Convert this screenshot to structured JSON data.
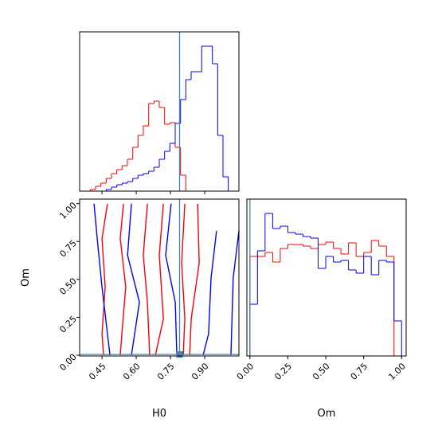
{
  "chart_data": [
    {
      "type": "histogram",
      "bins": [
        0.352,
        0.3753,
        0.3985,
        0.4218,
        0.4451,
        0.4683,
        0.4916,
        0.5149,
        0.5381,
        0.5614,
        0.5847,
        0.6079,
        0.6312,
        0.6545,
        0.6777,
        0.701,
        0.7243,
        0.7475,
        0.7708,
        0.7941,
        0.8173,
        0.8406,
        0.8639,
        0.8871,
        0.9104,
        0.9337,
        0.9569,
        0.9802,
        1.0035,
        1.0267,
        1.05
      ],
      "series": [
        {
          "color": "#ff0000",
          "values": [
            0,
            0,
            2,
            6,
            10,
            16,
            22,
            27,
            32,
            40,
            55,
            70,
            82,
            110,
            113,
            105,
            84,
            86,
            55,
            20,
            0,
            0,
            0,
            0,
            0,
            0,
            0,
            0,
            0,
            0
          ]
        },
        {
          "color": "#0000ff",
          "values": [
            0,
            0,
            0,
            0,
            0,
            2,
            5,
            8,
            10,
            12,
            16,
            20,
            22,
            25,
            30,
            40,
            50,
            60,
            85,
            115,
            140,
            150,
            150,
            182,
            182,
            160,
            70,
            18,
            0,
            0
          ]
        }
      ],
      "xlim": [
        0.352,
        1.05
      ],
      "ylim": [
        0,
        200
      ],
      "xticks": [
        0.45,
        0.6,
        0.75,
        0.9
      ],
      "truth_x": 0.79,
      "truth_color": "#4682b4"
    },
    {
      "type": "contour",
      "xlabel": "H0",
      "ylabel": "Om",
      "xlim": [
        0.352,
        1.05
      ],
      "ylim": [
        -0.005,
        1.03
      ],
      "xticks": [
        0.45,
        {
          "value": 0.6,
          "label": "0.60"
        },
        0.75,
        {
          "value": 0.9,
          "label": "0.90"
        }
      ],
      "yticks": [
        {
          "value": 0,
          "label": "0.00"
        },
        0.25,
        {
          "value": 0.5,
          "label": "0.50"
        },
        0.75,
        {
          "value": 1,
          "label": "1.00"
        }
      ],
      "series": [
        {
          "color": "#ff0000",
          "contours": [
            {
              "x": [
                0.474,
                0.45,
                0.464,
                0.45,
                0.457
              ],
              "y": [
                1.0,
                0.77,
                0.45,
                0.14,
                0.0
              ]
            },
            {
              "x": [
                0.544,
                0.53,
                0.554,
                0.537,
                0.53
              ],
              "y": [
                1.0,
                0.77,
                0.45,
                0.14,
                0.0
              ]
            },
            {
              "x": [
                0.649,
                0.631,
                0.649,
                0.659
              ],
              "y": [
                1.0,
                0.66,
                0.35,
                0.0
              ]
            },
            {
              "x": [
                0.719,
                0.701,
                0.719,
                0.684
              ],
              "y": [
                1.0,
                0.66,
                0.24,
                0.0
              ]
            },
            {
              "x": [
                0.813,
                0.799,
                0.813,
                0.806
              ],
              "y": [
                1.0,
                0.61,
                0.24,
                0.0
              ]
            },
            {
              "x": [
                0.869,
                0.876,
                0.841,
                0.834
              ],
              "y": [
                1.0,
                0.61,
                0.24,
                0.0
              ]
            }
          ]
        },
        {
          "color": "#0000ff",
          "contours": [
            {
              "x": [
                0.415,
                0.429,
                0.45,
                0.474,
                0.485
              ],
              "y": [
                1.0,
                0.77,
                0.45,
                0.14,
                0.0
              ]
            },
            {
              "x": [
                0.579,
                0.562,
                0.614,
                0.579
              ],
              "y": [
                1.0,
                0.66,
                0.35,
                0.0
              ]
            },
            {
              "x": [
                0.753,
                0.729,
                0.771,
                0.778
              ],
              "y": [
                1.0,
                0.66,
                0.35,
                0.0
              ]
            },
            {
              "x": [
                0.952,
                0.928,
                0.917,
                0.893
              ],
              "y": [
                0.82,
                0.51,
                0.14,
                0.0
              ]
            },
            {
              "x": [
                1.05,
                1.025,
                1.015
              ],
              "y": [
                0.82,
                0.51,
                0.0
              ]
            }
          ]
        }
      ],
      "truth_x": 0.79,
      "truth_y": 0.005,
      "truth_color": "#4682b4"
    },
    {
      "type": "histogram",
      "xlabel": "Om",
      "bins": [
        0,
        0.05,
        0.1,
        0.15,
        0.2,
        0.25,
        0.3,
        0.35,
        0.4,
        0.45,
        0.5,
        0.55,
        0.6,
        0.65,
        0.7,
        0.75,
        0.8,
        0.85,
        0.9,
        0.95,
        1.0
      ],
      "series": [
        {
          "color": "#ff0000",
          "values": [
            125,
            125,
            130,
            118,
            135,
            140,
            140,
            138,
            135,
            140,
            143,
            135,
            128,
            142,
            125,
            130,
            145,
            138,
            125,
            0
          ]
        },
        {
          "color": "#0000ff",
          "values": [
            65,
            132,
            179,
            160,
            163,
            155,
            153,
            150,
            148,
            110,
            125,
            118,
            120,
            108,
            104,
            125,
            102,
            120,
            118,
            44
          ]
        }
      ],
      "xlim": [
        -0.02,
        1.03
      ],
      "ylim": [
        0,
        197
      ],
      "xticks": [
        {
          "value": 0,
          "label": "0.00"
        },
        0.25,
        {
          "value": 0.5,
          "label": "0.50"
        },
        0.75,
        {
          "value": 1,
          "label": "1.00"
        }
      ],
      "truth_x": 0.0,
      "truth_color": "#4682b4"
    }
  ]
}
